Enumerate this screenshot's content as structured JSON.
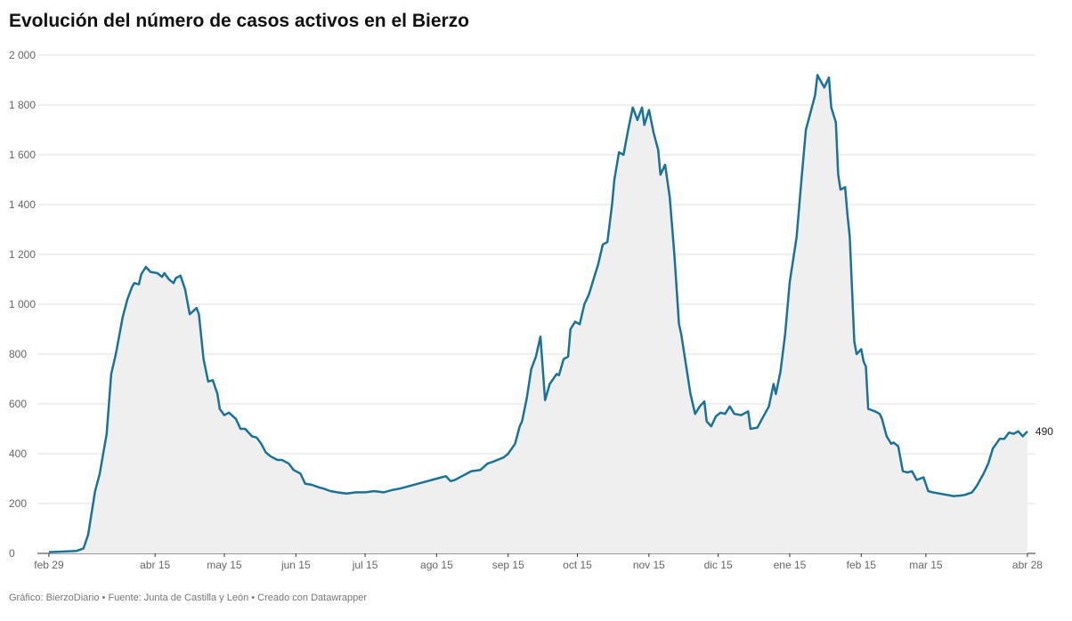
{
  "chart_data": {
    "type": "area",
    "title": "Evolución del número de casos activos en el Bierzo",
    "source": "Gráfico: BierzoDiario • Fuente: Junta de Castilla y León • Creado con Datawrapper",
    "color": "#1a7397",
    "fill": "#efefef",
    "grid": true,
    "x": [
      0,
      12,
      15,
      17,
      20,
      22,
      25,
      27,
      29,
      32,
      34,
      36,
      37,
      39,
      40,
      42,
      44,
      47,
      49,
      50,
      52,
      54,
      55,
      57,
      59,
      61,
      64,
      65,
      67,
      69,
      71,
      73,
      74,
      76,
      78,
      81,
      83,
      85,
      88,
      90,
      92,
      94,
      96,
      99,
      101,
      104,
      106,
      109,
      111,
      114,
      117,
      119,
      122,
      125,
      129,
      133,
      137,
      141,
      145,
      149,
      152,
      156,
      160,
      164,
      168,
      172,
      174,
      176,
      179,
      183,
      187,
      190,
      193,
      197,
      199,
      202,
      204,
      205,
      207,
      209,
      211,
      213,
      215,
      217,
      220,
      221,
      223,
      225,
      226,
      228,
      230,
      232,
      234,
      236,
      238,
      240,
      242,
      244,
      245,
      247,
      249,
      251,
      253,
      255,
      257,
      258,
      260,
      262,
      264,
      265,
      267,
      269,
      271,
      273,
      274,
      277,
      278,
      280,
      282,
      284,
      285,
      287,
      289,
      291,
      293,
      295,
      297,
      300,
      303,
      304,
      307,
      309,
      312,
      314,
      315,
      317,
      319,
      321,
      324,
      326,
      328,
      330,
      332,
      333,
      336,
      338,
      339,
      341,
      342,
      343,
      345,
      346,
      347,
      349,
      350,
      352,
      353,
      354,
      355,
      358,
      360,
      361,
      363,
      365,
      366,
      368,
      370,
      372,
      374,
      376,
      379,
      381,
      383,
      386,
      389,
      392,
      395,
      397,
      400,
      402,
      405,
      407,
      409,
      412,
      414,
      416,
      418,
      420,
      422,
      424
    ],
    "values": [
      5,
      10,
      20,
      75,
      250,
      320,
      480,
      720,
      800,
      950,
      1020,
      1070,
      1085,
      1080,
      1120,
      1150,
      1130,
      1125,
      1110,
      1125,
      1100,
      1085,
      1105,
      1115,
      1060,
      960,
      985,
      960,
      780,
      690,
      695,
      640,
      580,
      555,
      565,
      540,
      500,
      500,
      470,
      465,
      440,
      405,
      390,
      375,
      375,
      360,
      335,
      320,
      280,
      275,
      265,
      260,
      250,
      245,
      240,
      245,
      245,
      250,
      245,
      255,
      260,
      270,
      280,
      290,
      300,
      310,
      290,
      295,
      310,
      330,
      335,
      360,
      370,
      385,
      400,
      440,
      510,
      530,
      620,
      740,
      790,
      870,
      615,
      680,
      720,
      715,
      780,
      790,
      900,
      930,
      920,
      1000,
      1040,
      1100,
      1160,
      1240,
      1250,
      1400,
      1500,
      1610,
      1600,
      1700,
      1790,
      1740,
      1790,
      1720,
      1780,
      1690,
      1620,
      1520,
      1560,
      1430,
      1200,
      920,
      880,
      700,
      640,
      560,
      590,
      610,
      530,
      510,
      550,
      565,
      560,
      590,
      560,
      555,
      570,
      500,
      505,
      540,
      590,
      680,
      640,
      730,
      880,
      1090,
      1270,
      1490,
      1700,
      1770,
      1840,
      1920,
      1870,
      1910,
      1790,
      1730,
      1520,
      1460,
      1470,
      1360,
      1270,
      850,
      800,
      820,
      770,
      750,
      580,
      570,
      560,
      540,
      470,
      440,
      445,
      430,
      330,
      325,
      330,
      295,
      305,
      250,
      245,
      240,
      235,
      230,
      232,
      235,
      245,
      270,
      320,
      360,
      420,
      460,
      460,
      485,
      480,
      490,
      470,
      490
    ],
    "xlim": [
      -5,
      427.5
    ],
    "xticks": [
      {
        "value": 0,
        "label": "feb 29"
      },
      {
        "value": 46,
        "label": "abr 15"
      },
      {
        "value": 76,
        "label": "may 15"
      },
      {
        "value": 107,
        "label": "jun 15"
      },
      {
        "value": 137,
        "label": "jul 15"
      },
      {
        "value": 168,
        "label": "ago 15"
      },
      {
        "value": 199,
        "label": "sep 15"
      },
      {
        "value": 229,
        "label": "oct 15"
      },
      {
        "value": 260,
        "label": "nov 15"
      },
      {
        "value": 290,
        "label": "dic 15"
      },
      {
        "value": 321,
        "label": "ene 15"
      },
      {
        "value": 352,
        "label": "feb 15"
      },
      {
        "value": 380,
        "label": "mar 15"
      },
      {
        "value": 424,
        "label": "abr 28"
      }
    ],
    "ylim": [
      0,
      2000
    ],
    "yticks": [
      0,
      200,
      400,
      600,
      800,
      {
        "value": 1000,
        "label": "1 000"
      },
      {
        "value": 1200,
        "label": "1 200"
      },
      {
        "value": 1400,
        "label": "1 400"
      },
      {
        "value": 1600,
        "label": "1 600"
      },
      {
        "value": 1800,
        "label": "1 800"
      },
      {
        "value": 2000,
        "label": "2 000"
      }
    ]
  }
}
